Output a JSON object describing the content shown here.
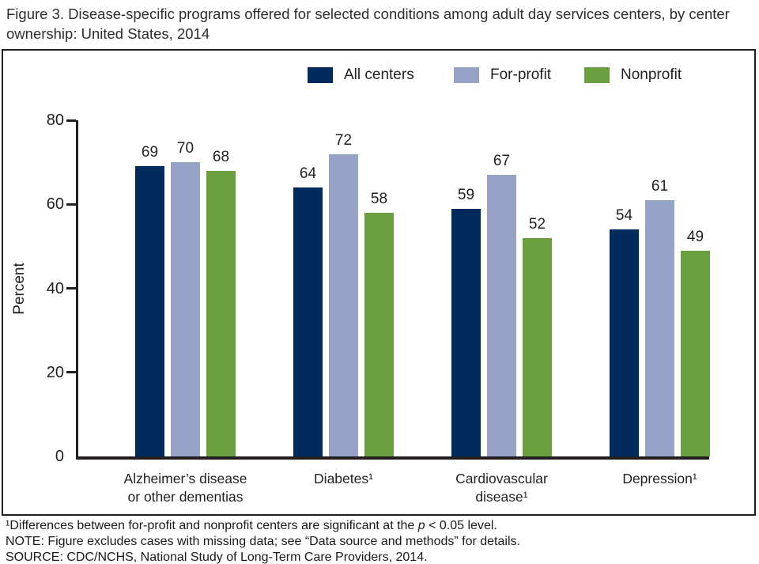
{
  "figure": {
    "title": "Figure 3. Disease-specific programs offered for selected conditions among adult day services centers, by center ownership: United States, 2014"
  },
  "chart_data": {
    "type": "bar",
    "title": "Disease-specific programs offered for selected conditions among adult day services centers, by center ownership: United States, 2014",
    "ylabel": "Percent",
    "xlabel": "",
    "ylim": [
      0,
      80
    ],
    "yticks": [
      0,
      20,
      40,
      60,
      80
    ],
    "grid": false,
    "legend_position": "top",
    "categories": [
      [
        "Alzheimer’s disease",
        "or other dementias"
      ],
      [
        "Diabetes¹"
      ],
      [
        "Cardiovascular",
        "disease¹"
      ],
      [
        "Depression¹"
      ]
    ],
    "series": [
      {
        "name": "All centers",
        "color": "#002B5C",
        "values": [
          69,
          64,
          59,
          54
        ]
      },
      {
        "name": "For-profit",
        "color": "#97A3C6",
        "values": [
          70,
          72,
          67,
          61
        ]
      },
      {
        "name": "Nonprofit",
        "color": "#6BA03F",
        "values": [
          68,
          58,
          52,
          49
        ]
      }
    ]
  },
  "footnotes": {
    "sig_pre": "¹Differences between for-profit and nonprofit centers are significant at the ",
    "sig_italic": "p",
    "sig_post": " < 0.05 level.",
    "note": "NOTE: Figure excludes cases with missing data; see “Data source and methods” for details.",
    "source": "SOURCE: CDC/NCHS, National Study of Long-Term Care Providers, 2014."
  }
}
